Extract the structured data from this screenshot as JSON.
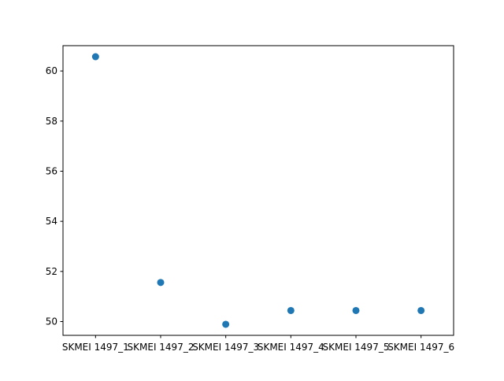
{
  "chart_data": {
    "type": "scatter",
    "categories": [
      "SKMEI 1497_1",
      "SKMEI 1497_2",
      "SKMEI 1497_3",
      "SKMEI 1497_4",
      "SKMEI 1497_5",
      "SKMEI 1497_6"
    ],
    "values": [
      60.57,
      51.56,
      49.89,
      50.44,
      50.44,
      50.44
    ],
    "title": "",
    "xlabel": "",
    "ylabel": "",
    "ylim": [
      49.45,
      61.01
    ],
    "yticks": [
      50,
      52,
      54,
      56,
      58,
      60
    ],
    "grid": false,
    "marker_color": "#1f77b4"
  }
}
